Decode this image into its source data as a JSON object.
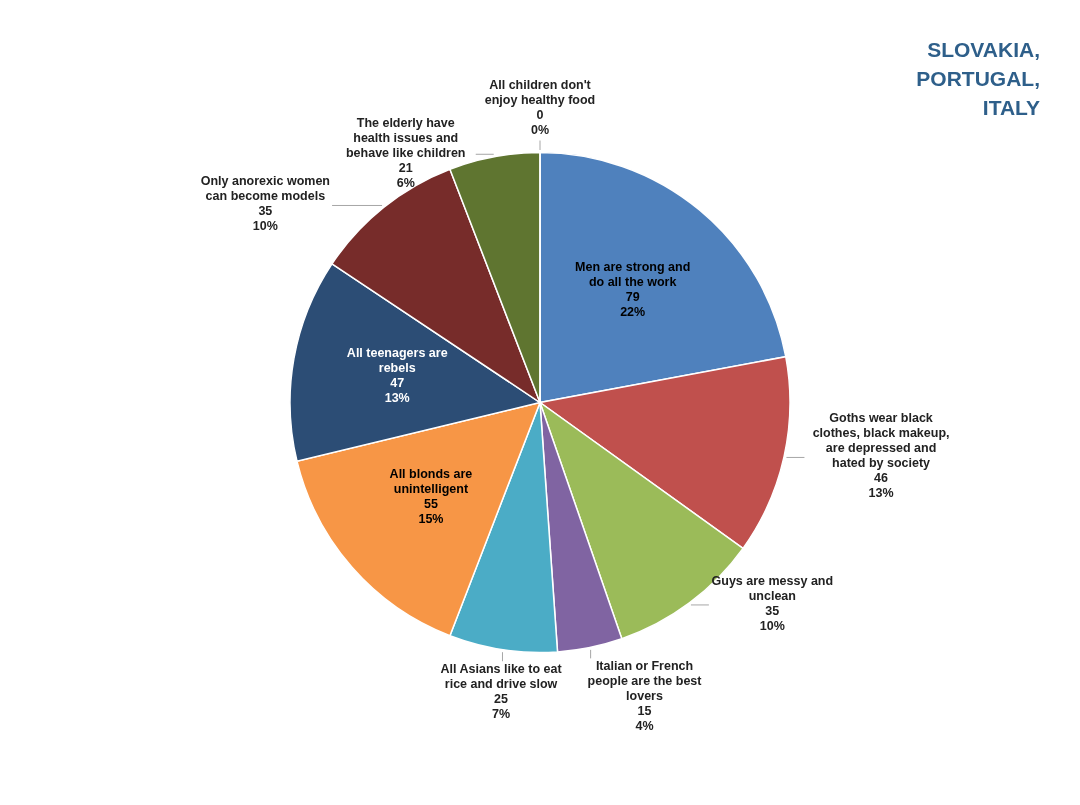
{
  "chart_data": {
    "type": "pie",
    "categories": [
      "Men are strong and do all the work",
      "Goths wear black clothes, black makeup, are depressed and hated by society",
      "Guys are messy and unclean",
      "Italian or French people are the best lovers",
      "All Asians like to eat rice and drive slow",
      "All blonds are unintelligent",
      "All teenagers are rebels",
      "Only anorexic women can become models",
      "The elderly have health issues and behave like children",
      "All children don't enjoy healthy food"
    ],
    "values": [
      79,
      46,
      35,
      15,
      25,
      55,
      47,
      35,
      21,
      0
    ],
    "value_labels": [
      "79\n22%",
      "46\n13%",
      "35\n10%",
      "15\n4%",
      "25\n7%",
      "55\n15%",
      "47\n13%",
      "35\n10%",
      "21\n6%",
      "0\n0%"
    ],
    "colors": [
      "#4f81bd",
      "#c0504d",
      "#9bbb59",
      "#8064a2",
      "#4bacc6",
      "#f79646",
      "#2c4d75",
      "#772c2a",
      "#5f7530",
      "#276a7c"
    ],
    "annotations": [
      "SLOVAKIA, PORTUGAL, ITALY"
    ]
  }
}
